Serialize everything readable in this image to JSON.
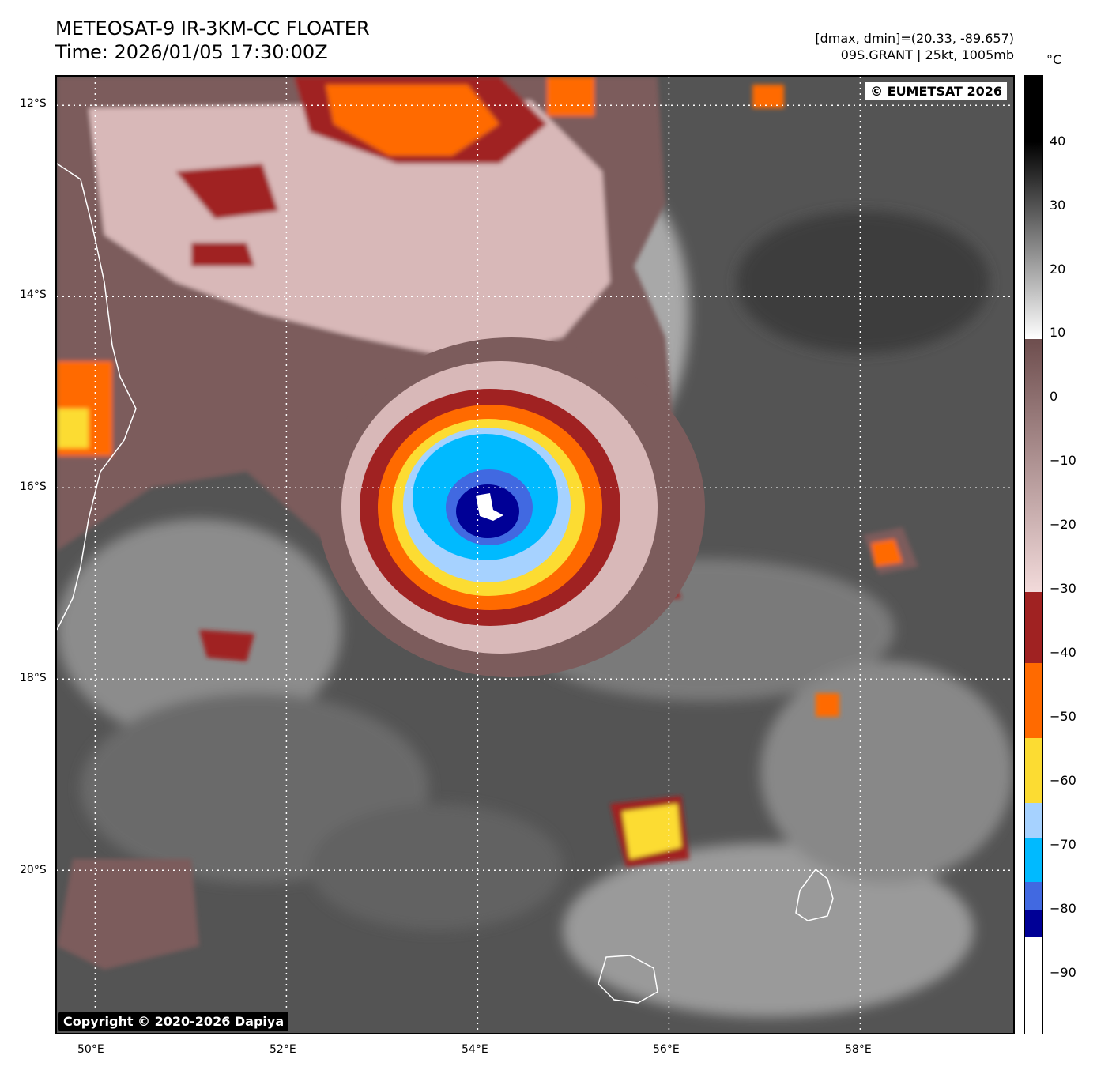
{
  "header": {
    "title_line1": "METEOSAT-9 IR-3KM-CC FLOATER",
    "title_line2": "Time: 2026/01/05 17:30:00Z",
    "dminmax": "[dmax, dmin]=(20.33, -89.657)",
    "storm_info": "09S.GRANT | 25kt, 1005mb"
  },
  "map": {
    "copyright_eumetsat": "© EUMETSAT 2026",
    "copyright_dapiya": "Copyright © 2020-2026 Dapiya",
    "lat_labels": [
      "12°S",
      "14°S",
      "16°S",
      "18°S",
      "20°S"
    ],
    "lon_labels": [
      "50°E",
      "52°E",
      "54°E",
      "56°E",
      "58°E"
    ],
    "lat_range": [
      -21.7,
      -11.7
    ],
    "lon_range": [
      49.6,
      59.6
    ]
  },
  "colorbar": {
    "unit": "°C",
    "ticks": [
      "40",
      "30",
      "20",
      "10",
      "0",
      "−10",
      "−20",
      "−30",
      "−40",
      "−50",
      "−60",
      "−70",
      "−80",
      "−90"
    ],
    "range": [
      -100,
      50
    ],
    "colors": {
      "black": "#000000",
      "white": "#ffffff",
      "brown": "#6e4e4e",
      "pink": "#f2dada",
      "dark_red": "#a02222",
      "orange": "#ff6a00",
      "yellow": "#fcdc32",
      "light_blue": "#a6d2ff",
      "cyan": "#00baff",
      "royal_blue": "#4169e1",
      "navy": "#000096"
    }
  }
}
